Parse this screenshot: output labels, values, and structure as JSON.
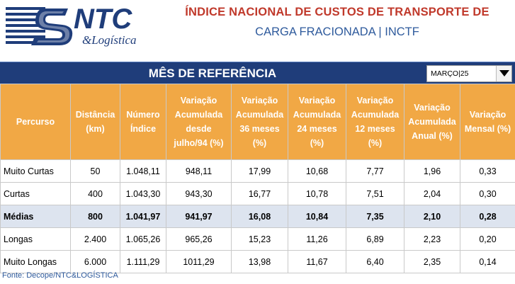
{
  "header": {
    "logo_text": "NTC",
    "logo_subtext": "&Logística",
    "title_line1": "ÍNDICE NACIONAL DE CUSTOS DE TRANSPORTE DE",
    "title_line2": "CARGA FRACIONADA | INCTF"
  },
  "reference": {
    "label": "MÊS DE REFERÊNCIA",
    "selected": "MARÇO|25"
  },
  "table": {
    "columns": [
      "Percurso",
      "Distância (km)",
      "Número Índice",
      "Variação Acumulada desde julho/94   (%)",
      "Variação Acumulada 36 meses (%)",
      "Variação Acumulada 24 meses (%)",
      "Variação Acumulada 12 meses (%)",
      "Variação Acumulada Anual (%)",
      "Variação Mensal (%)"
    ],
    "rows": [
      [
        "Muito Curtas",
        "50",
        "1.048,11",
        "948,11",
        "17,99",
        "10,68",
        "7,77",
        "1,96",
        "0,33"
      ],
      [
        "Curtas",
        "400",
        "1.043,30",
        "943,30",
        "16,77",
        "10,78",
        "7,51",
        "2,04",
        "0,30"
      ],
      [
        "Médias",
        "800",
        "1.041,97",
        "941,97",
        "16,08",
        "10,84",
        "7,35",
        "2,10",
        "0,28"
      ],
      [
        "Longas",
        "2.400",
        "1.065,26",
        "965,26",
        "15,23",
        "11,26",
        "6,89",
        "2,23",
        "0,20"
      ],
      [
        "Muito Longas",
        "6.000",
        "1.111,29",
        "1011,29",
        "13,98",
        "11,67",
        "6,40",
        "2,35",
        "0,14"
      ]
    ]
  },
  "footer": {
    "source": "Fonte: Decope/NTC&LOGÍSTICA"
  },
  "colors": {
    "navy": "#1f3d7a",
    "header_orange": "#f1a845",
    "title_red": "#c0392b",
    "title_blue": "#2e5a9c",
    "highlight_row": "#dde4ef"
  }
}
